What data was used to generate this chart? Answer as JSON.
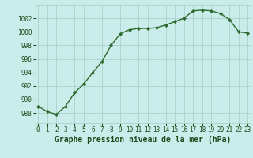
{
  "x": [
    0,
    1,
    2,
    3,
    4,
    5,
    6,
    7,
    8,
    9,
    10,
    11,
    12,
    13,
    14,
    15,
    16,
    17,
    18,
    19,
    20,
    21,
    22,
    23
  ],
  "y": [
    989.0,
    988.2,
    987.8,
    989.0,
    991.0,
    992.3,
    994.0,
    995.6,
    998.0,
    999.7,
    1000.3,
    1000.5,
    1000.5,
    1000.6,
    1001.0,
    1001.5,
    1002.0,
    1003.1,
    1003.2,
    1003.1,
    1002.7,
    1001.8,
    1000.0,
    999.8
  ],
  "line_color": "#2d6a2d",
  "marker": "D",
  "marker_size": 2.2,
  "linewidth": 1.0,
  "bg_color": "#caecea",
  "grid_color": "#aad4cc",
  "xlabel": "Graphe pression niveau de la mer (hPa)",
  "xlabel_color": "#1a4a1a",
  "xlabel_fontsize": 7,
  "tick_color": "#1a4a1a",
  "tick_fontsize": 5.5,
  "ylim": [
    986.5,
    1004.0
  ],
  "yticks": [
    988,
    990,
    992,
    994,
    996,
    998,
    1000,
    1002
  ],
  "xticks": [
    0,
    1,
    2,
    3,
    4,
    5,
    6,
    7,
    8,
    9,
    10,
    11,
    12,
    13,
    14,
    15,
    16,
    17,
    18,
    19,
    20,
    21,
    22,
    23
  ],
  "xlim": [
    -0.3,
    23.3
  ]
}
